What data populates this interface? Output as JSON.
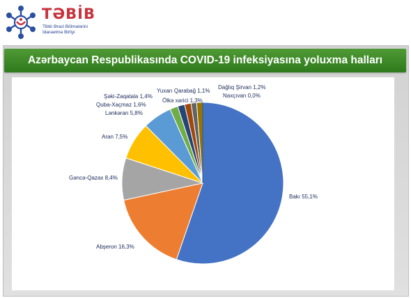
{
  "logo": {
    "word": "TƏBİB",
    "subline1": "Tibbi Ərazi Bölmələrini",
    "subline2": "İdarəetmə Birliyi"
  },
  "colors": {
    "banner": "#3f8a2a",
    "panel": "#d9d9d9",
    "text": "#1c2a5a"
  },
  "chart_data": {
    "type": "pie",
    "title": "Azərbaycan Respublikasında COVID-19 infeksiyasına yoluxma halları",
    "slices": [
      {
        "label": "Bakı 55,1%",
        "value": 55.1,
        "color": "#4472c4"
      },
      {
        "label": "Abşeron 16,3%",
        "value": 16.3,
        "color": "#ed7d31"
      },
      {
        "label": "Gəncə-Qazax 8,4%",
        "value": 8.4,
        "color": "#a5a5a5"
      },
      {
        "label": "Aran 7,5%",
        "value": 7.5,
        "color": "#ffc000"
      },
      {
        "label": "Lənkəran 5,8%",
        "value": 5.8,
        "color": "#5b9bd5"
      },
      {
        "label": "Quba-Xaçmaz 1,6%",
        "value": 1.6,
        "color": "#70ad47"
      },
      {
        "label": "Şəki-Zaqatala 1,4%",
        "value": 1.4,
        "color": "#264478"
      },
      {
        "label": "Ölkə xarici 1,3%",
        "value": 1.3,
        "color": "#9e480e"
      },
      {
        "label": "Yuxarı Qarabağ 1,1%",
        "value": 1.1,
        "color": "#636363"
      },
      {
        "label": "Dağlıq Şirvan 1,2%",
        "value": 1.2,
        "color": "#997300"
      },
      {
        "label": "Naxçıvan 0,0%",
        "value": 0.0,
        "color": "#255e91"
      }
    ]
  }
}
